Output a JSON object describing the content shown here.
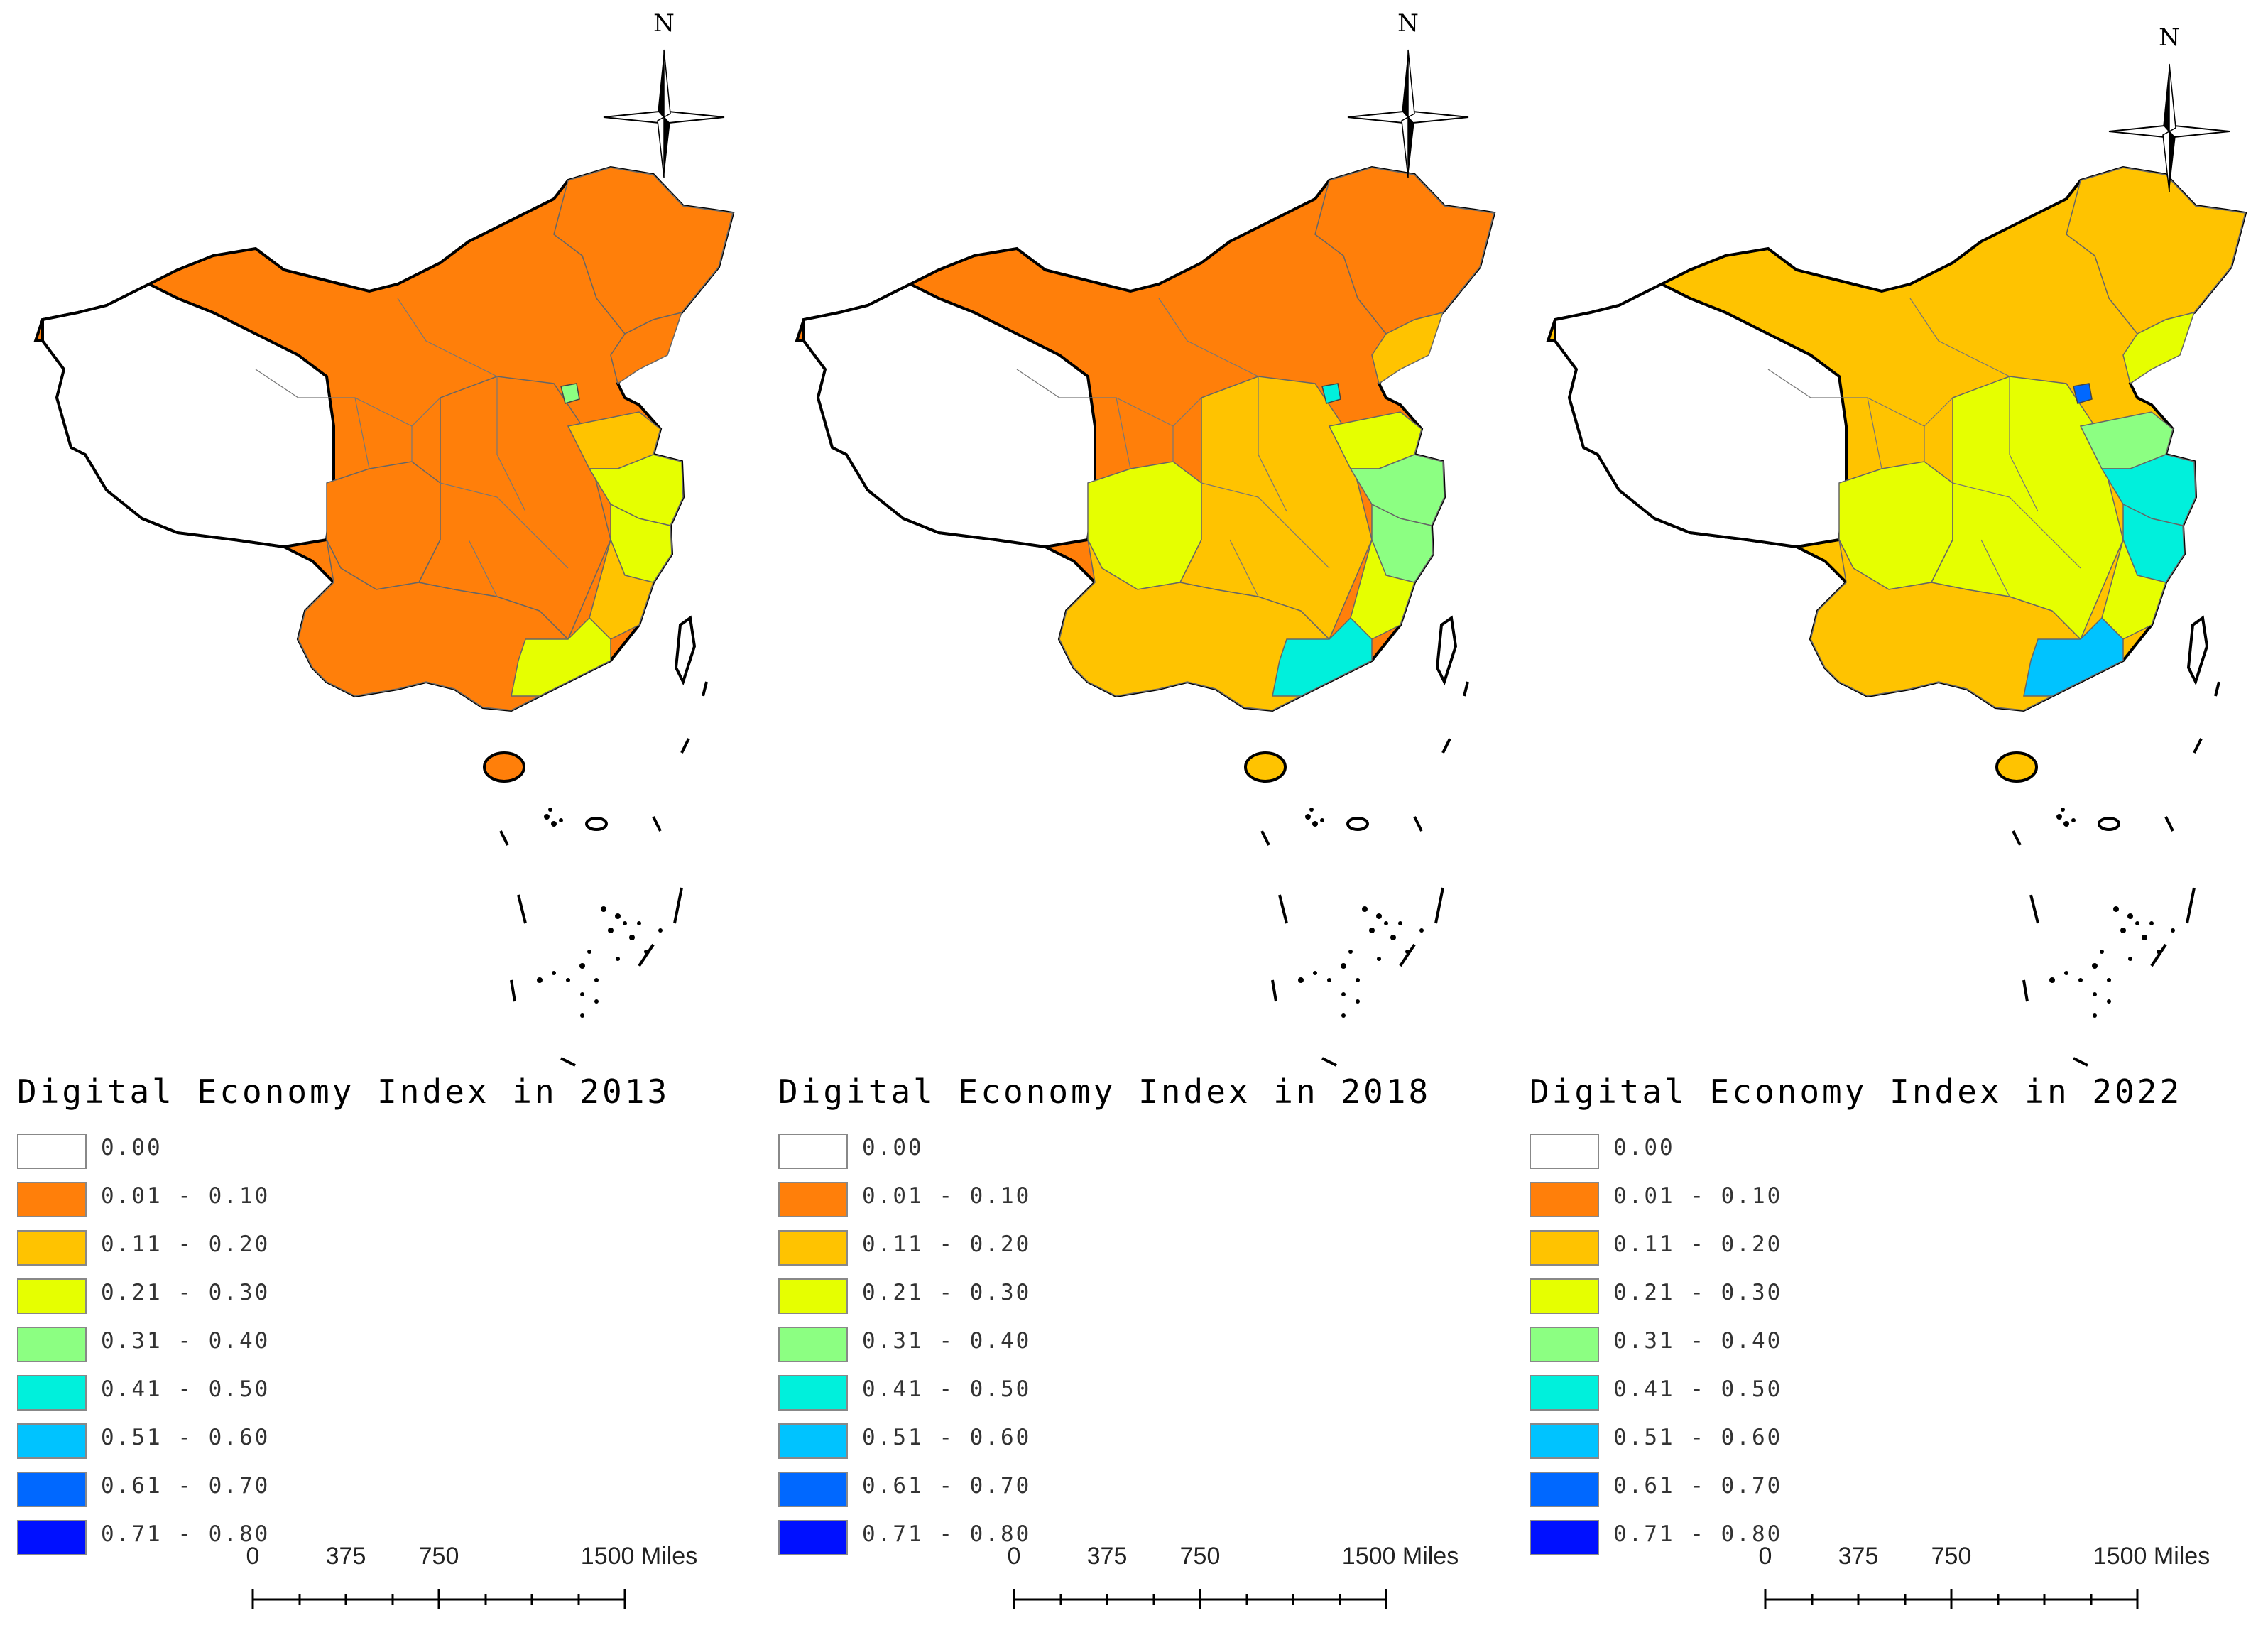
{
  "colors": {
    "c0": "#ffffff",
    "c1": "#ff7f0a",
    "c2": "#ffc300",
    "c3": "#e6ff00",
    "c4": "#8cff82",
    "c5": "#00f0dc",
    "c6": "#00c3ff",
    "c7": "#0068ff",
    "c8": "#0010ff"
  },
  "legend_classes": [
    {
      "label": "0.00",
      "color": "#ffffff"
    },
    {
      "label": "0.01 - 0.10",
      "color": "#ff7f0a"
    },
    {
      "label": "0.11 - 0.20",
      "color": "#ffc300"
    },
    {
      "label": "0.21 - 0.30",
      "color": "#e6ff00"
    },
    {
      "label": "0.31 - 0.40",
      "color": "#8cff82"
    },
    {
      "label": "0.41 - 0.50",
      "color": "#00f0dc"
    },
    {
      "label": "0.51 - 0.60",
      "color": "#00c3ff"
    },
    {
      "label": "0.61 - 0.70",
      "color": "#0068ff"
    },
    {
      "label": "0.71 - 0.80",
      "color": "#0010ff"
    }
  ],
  "north_label": "N",
  "scale_bar": {
    "ticks": [
      "0",
      "375",
      "750",
      "1500 Miles"
    ]
  },
  "maps": [
    {
      "title": "Digital Economy Index in 2013",
      "regions": {
        "base": 1,
        "tibet": 0,
        "northeast": 1,
        "beijing": 4,
        "shandong": 2,
        "jiangsu": 3,
        "zhejiang": 3,
        "fujian": 2,
        "guangdong": 3,
        "hainan": 1,
        "east_core": 1,
        "sichuan": 1,
        "south": 1
      }
    },
    {
      "title": "Digital Economy Index in 2018",
      "regions": {
        "base": 1,
        "tibet": 0,
        "northeast": 1,
        "beijing": 5,
        "shandong": 3,
        "jiangsu": 4,
        "zhejiang": 4,
        "fujian": 3,
        "guangdong": 5,
        "hainan": 2,
        "east_core": 2,
        "sichuan": 3,
        "south": 2,
        "liaoning": 2
      }
    },
    {
      "title": "Digital Economy Index in 2022",
      "regions": {
        "base": 2,
        "tibet": 0,
        "northeast": 2,
        "beijing": 7,
        "shandong": 4,
        "jiangsu": 5,
        "zhejiang": 5,
        "fujian": 3,
        "guangdong": 6,
        "hainan": 2,
        "east_core": 3,
        "sichuan": 3,
        "south": 2,
        "liaoning": 3
      }
    }
  ]
}
